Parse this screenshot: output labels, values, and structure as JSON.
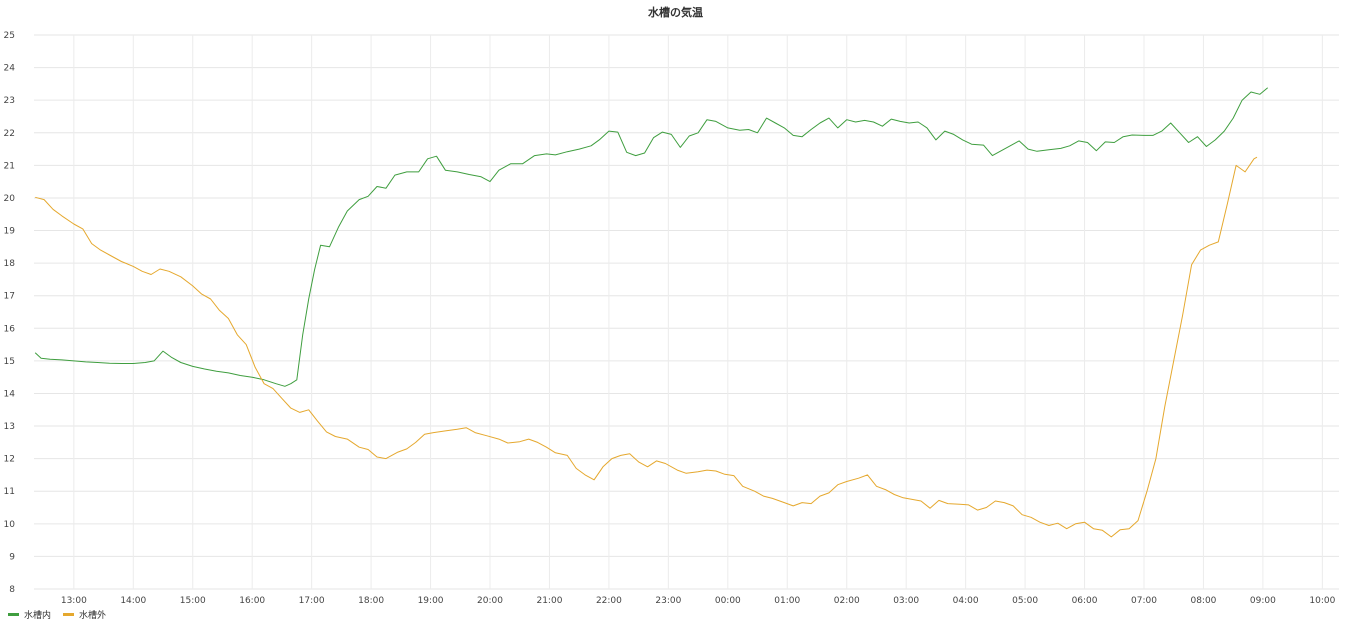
{
  "chart_data": {
    "type": "line",
    "title": "水槽の気温",
    "xlabel": "",
    "ylabel": "",
    "ylim": [
      8,
      25
    ],
    "yticks": [
      8,
      9,
      10,
      11,
      12,
      13,
      14,
      15,
      16,
      17,
      18,
      19,
      20,
      21,
      22,
      23,
      24,
      25
    ],
    "xlim": [
      12.33,
      34.28
    ],
    "x_unit": "hours",
    "xticks": [
      {
        "x": 13,
        "label": "13:00"
      },
      {
        "x": 14,
        "label": "14:00"
      },
      {
        "x": 15,
        "label": "15:00"
      },
      {
        "x": 16,
        "label": "16:00"
      },
      {
        "x": 17,
        "label": "17:00"
      },
      {
        "x": 18,
        "label": "18:00"
      },
      {
        "x": 19,
        "label": "19:00"
      },
      {
        "x": 20,
        "label": "20:00"
      },
      {
        "x": 21,
        "label": "21:00"
      },
      {
        "x": 22,
        "label": "22:00"
      },
      {
        "x": 23,
        "label": "23:00"
      },
      {
        "x": 24,
        "label": "00:00"
      },
      {
        "x": 25,
        "label": "01:00"
      },
      {
        "x": 26,
        "label": "02:00"
      },
      {
        "x": 27,
        "label": "03:00"
      },
      {
        "x": 28,
        "label": "04:00"
      },
      {
        "x": 29,
        "label": "05:00"
      },
      {
        "x": 30,
        "label": "06:00"
      },
      {
        "x": 31,
        "label": "07:00"
      },
      {
        "x": 32,
        "label": "08:00"
      },
      {
        "x": 33,
        "label": "09:00"
      },
      {
        "x": 34,
        "label": "10:00"
      }
    ],
    "grid": true,
    "legend_position": "bottom-left",
    "series": [
      {
        "name": "水槽内",
        "color": "#3f9e3f",
        "points": [
          [
            12.35,
            15.25
          ],
          [
            12.45,
            15.08
          ],
          [
            12.6,
            15.05
          ],
          [
            12.8,
            15.03
          ],
          [
            13.0,
            15.0
          ],
          [
            13.2,
            14.97
          ],
          [
            13.4,
            14.95
          ],
          [
            13.6,
            14.93
          ],
          [
            13.8,
            14.92
          ],
          [
            14.0,
            14.92
          ],
          [
            14.2,
            14.95
          ],
          [
            14.35,
            15.0
          ],
          [
            14.5,
            15.3
          ],
          [
            14.65,
            15.1
          ],
          [
            14.8,
            14.95
          ],
          [
            15.0,
            14.83
          ],
          [
            15.2,
            14.75
          ],
          [
            15.4,
            14.68
          ],
          [
            15.6,
            14.63
          ],
          [
            15.8,
            14.55
          ],
          [
            16.0,
            14.5
          ],
          [
            16.2,
            14.42
          ],
          [
            16.4,
            14.3
          ],
          [
            16.55,
            14.22
          ],
          [
            16.65,
            14.3
          ],
          [
            16.75,
            14.42
          ],
          [
            16.85,
            15.8
          ],
          [
            16.95,
            16.9
          ],
          [
            17.05,
            17.8
          ],
          [
            17.15,
            18.55
          ],
          [
            17.3,
            18.5
          ],
          [
            17.45,
            19.1
          ],
          [
            17.6,
            19.6
          ],
          [
            17.8,
            19.95
          ],
          [
            17.95,
            20.05
          ],
          [
            18.1,
            20.35
          ],
          [
            18.25,
            20.3
          ],
          [
            18.4,
            20.7
          ],
          [
            18.6,
            20.8
          ],
          [
            18.8,
            20.8
          ],
          [
            18.95,
            21.2
          ],
          [
            19.1,
            21.28
          ],
          [
            19.25,
            20.85
          ],
          [
            19.45,
            20.8
          ],
          [
            19.65,
            20.72
          ],
          [
            19.85,
            20.65
          ],
          [
            20.0,
            20.5
          ],
          [
            20.15,
            20.85
          ],
          [
            20.35,
            21.05
          ],
          [
            20.55,
            21.05
          ],
          [
            20.75,
            21.3
          ],
          [
            20.95,
            21.35
          ],
          [
            21.1,
            21.32
          ],
          [
            21.3,
            21.42
          ],
          [
            21.5,
            21.5
          ],
          [
            21.7,
            21.6
          ],
          [
            21.85,
            21.8
          ],
          [
            22.0,
            22.05
          ],
          [
            22.15,
            22.02
          ],
          [
            22.3,
            21.4
          ],
          [
            22.45,
            21.3
          ],
          [
            22.6,
            21.38
          ],
          [
            22.75,
            21.85
          ],
          [
            22.9,
            22.02
          ],
          [
            23.05,
            21.95
          ],
          [
            23.2,
            21.55
          ],
          [
            23.35,
            21.9
          ],
          [
            23.5,
            22.0
          ],
          [
            23.65,
            22.4
          ],
          [
            23.8,
            22.35
          ],
          [
            24.0,
            22.15
          ],
          [
            24.2,
            22.08
          ],
          [
            24.35,
            22.1
          ],
          [
            24.5,
            22.0
          ],
          [
            24.65,
            22.45
          ],
          [
            24.8,
            22.3
          ],
          [
            24.95,
            22.15
          ],
          [
            25.1,
            21.92
          ],
          [
            25.25,
            21.88
          ],
          [
            25.4,
            22.1
          ],
          [
            25.55,
            22.3
          ],
          [
            25.7,
            22.45
          ],
          [
            25.85,
            22.15
          ],
          [
            26.0,
            22.4
          ],
          [
            26.15,
            22.33
          ],
          [
            26.3,
            22.38
          ],
          [
            26.45,
            22.33
          ],
          [
            26.6,
            22.2
          ],
          [
            26.75,
            22.42
          ],
          [
            26.9,
            22.35
          ],
          [
            27.05,
            22.3
          ],
          [
            27.2,
            22.33
          ],
          [
            27.35,
            22.15
          ],
          [
            27.5,
            21.78
          ],
          [
            27.65,
            22.05
          ],
          [
            27.8,
            21.95
          ],
          [
            27.95,
            21.78
          ],
          [
            28.1,
            21.65
          ],
          [
            28.3,
            21.62
          ],
          [
            28.45,
            21.3
          ],
          [
            28.6,
            21.45
          ],
          [
            28.75,
            21.6
          ],
          [
            28.9,
            21.75
          ],
          [
            29.05,
            21.5
          ],
          [
            29.2,
            21.43
          ],
          [
            29.4,
            21.48
          ],
          [
            29.6,
            21.52
          ],
          [
            29.75,
            21.6
          ],
          [
            29.9,
            21.75
          ],
          [
            30.05,
            21.7
          ],
          [
            30.2,
            21.45
          ],
          [
            30.35,
            21.72
          ],
          [
            30.5,
            21.7
          ],
          [
            30.65,
            21.88
          ],
          [
            30.8,
            21.93
          ],
          [
            31.0,
            21.92
          ],
          [
            31.15,
            21.92
          ],
          [
            31.3,
            22.05
          ],
          [
            31.45,
            22.3
          ],
          [
            31.6,
            22.0
          ],
          [
            31.75,
            21.7
          ],
          [
            31.9,
            21.88
          ],
          [
            32.05,
            21.58
          ],
          [
            32.2,
            21.78
          ],
          [
            32.35,
            22.05
          ],
          [
            32.5,
            22.45
          ],
          [
            32.65,
            23.0
          ],
          [
            32.8,
            23.25
          ],
          [
            32.95,
            23.18
          ],
          [
            33.08,
            23.38
          ]
        ]
      },
      {
        "name": "水槽外",
        "color": "#e5a82e",
        "points": [
          [
            12.35,
            20.02
          ],
          [
            12.5,
            19.95
          ],
          [
            12.65,
            19.65
          ],
          [
            12.8,
            19.45
          ],
          [
            13.0,
            19.2
          ],
          [
            13.15,
            19.05
          ],
          [
            13.3,
            18.6
          ],
          [
            13.45,
            18.4
          ],
          [
            13.6,
            18.25
          ],
          [
            13.8,
            18.05
          ],
          [
            14.0,
            17.9
          ],
          [
            14.15,
            17.75
          ],
          [
            14.3,
            17.65
          ],
          [
            14.45,
            17.82
          ],
          [
            14.6,
            17.75
          ],
          [
            14.8,
            17.58
          ],
          [
            15.0,
            17.3
          ],
          [
            15.15,
            17.05
          ],
          [
            15.3,
            16.9
          ],
          [
            15.45,
            16.55
          ],
          [
            15.6,
            16.3
          ],
          [
            15.75,
            15.8
          ],
          [
            15.9,
            15.5
          ],
          [
            16.05,
            14.8
          ],
          [
            16.2,
            14.3
          ],
          [
            16.35,
            14.15
          ],
          [
            16.5,
            13.85
          ],
          [
            16.65,
            13.55
          ],
          [
            16.8,
            13.42
          ],
          [
            16.95,
            13.5
          ],
          [
            17.1,
            13.15
          ],
          [
            17.25,
            12.82
          ],
          [
            17.4,
            12.68
          ],
          [
            17.6,
            12.6
          ],
          [
            17.8,
            12.35
          ],
          [
            17.95,
            12.28
          ],
          [
            18.1,
            12.05
          ],
          [
            18.25,
            12.0
          ],
          [
            18.45,
            12.2
          ],
          [
            18.6,
            12.3
          ],
          [
            18.75,
            12.5
          ],
          [
            18.9,
            12.75
          ],
          [
            19.05,
            12.8
          ],
          [
            19.25,
            12.85
          ],
          [
            19.45,
            12.9
          ],
          [
            19.6,
            12.95
          ],
          [
            19.75,
            12.8
          ],
          [
            19.95,
            12.7
          ],
          [
            20.15,
            12.6
          ],
          [
            20.3,
            12.48
          ],
          [
            20.5,
            12.52
          ],
          [
            20.65,
            12.6
          ],
          [
            20.8,
            12.5
          ],
          [
            20.95,
            12.35
          ],
          [
            21.1,
            12.18
          ],
          [
            21.3,
            12.1
          ],
          [
            21.45,
            11.7
          ],
          [
            21.6,
            11.5
          ],
          [
            21.75,
            11.35
          ],
          [
            21.9,
            11.75
          ],
          [
            22.05,
            12.0
          ],
          [
            22.2,
            12.1
          ],
          [
            22.35,
            12.15
          ],
          [
            22.5,
            11.9
          ],
          [
            22.65,
            11.75
          ],
          [
            22.8,
            11.93
          ],
          [
            22.95,
            11.85
          ],
          [
            23.15,
            11.65
          ],
          [
            23.3,
            11.55
          ],
          [
            23.5,
            11.6
          ],
          [
            23.65,
            11.65
          ],
          [
            23.8,
            11.62
          ],
          [
            23.95,
            11.52
          ],
          [
            24.1,
            11.48
          ],
          [
            24.25,
            11.15
          ],
          [
            24.45,
            11.0
          ],
          [
            24.6,
            10.85
          ],
          [
            24.75,
            10.78
          ],
          [
            24.95,
            10.65
          ],
          [
            25.1,
            10.55
          ],
          [
            25.25,
            10.65
          ],
          [
            25.4,
            10.62
          ],
          [
            25.55,
            10.85
          ],
          [
            25.7,
            10.95
          ],
          [
            25.85,
            11.2
          ],
          [
            26.0,
            11.3
          ],
          [
            26.2,
            11.4
          ],
          [
            26.35,
            11.5
          ],
          [
            26.5,
            11.15
          ],
          [
            26.65,
            11.05
          ],
          [
            26.8,
            10.9
          ],
          [
            26.95,
            10.8
          ],
          [
            27.1,
            10.75
          ],
          [
            27.25,
            10.7
          ],
          [
            27.4,
            10.48
          ],
          [
            27.55,
            10.72
          ],
          [
            27.7,
            10.62
          ],
          [
            27.9,
            10.6
          ],
          [
            28.05,
            10.58
          ],
          [
            28.2,
            10.42
          ],
          [
            28.35,
            10.5
          ],
          [
            28.5,
            10.7
          ],
          [
            28.65,
            10.65
          ],
          [
            28.8,
            10.55
          ],
          [
            28.95,
            10.28
          ],
          [
            29.1,
            10.2
          ],
          [
            29.25,
            10.05
          ],
          [
            29.4,
            9.95
          ],
          [
            29.55,
            10.02
          ],
          [
            29.7,
            9.85
          ],
          [
            29.85,
            10.0
          ],
          [
            30.0,
            10.05
          ],
          [
            30.15,
            9.85
          ],
          [
            30.3,
            9.8
          ],
          [
            30.45,
            9.6
          ],
          [
            30.6,
            9.82
          ],
          [
            30.75,
            9.85
          ],
          [
            30.9,
            10.1
          ],
          [
            31.05,
            11.0
          ],
          [
            31.2,
            12.0
          ],
          [
            31.35,
            13.6
          ],
          [
            31.5,
            15.0
          ],
          [
            31.65,
            16.4
          ],
          [
            31.8,
            17.95
          ],
          [
            31.95,
            18.4
          ],
          [
            32.1,
            18.55
          ],
          [
            32.25,
            18.65
          ],
          [
            32.4,
            19.8
          ],
          [
            32.55,
            21.0
          ],
          [
            32.7,
            20.8
          ],
          [
            32.85,
            21.2
          ],
          [
            32.9,
            21.25
          ]
        ]
      }
    ]
  }
}
